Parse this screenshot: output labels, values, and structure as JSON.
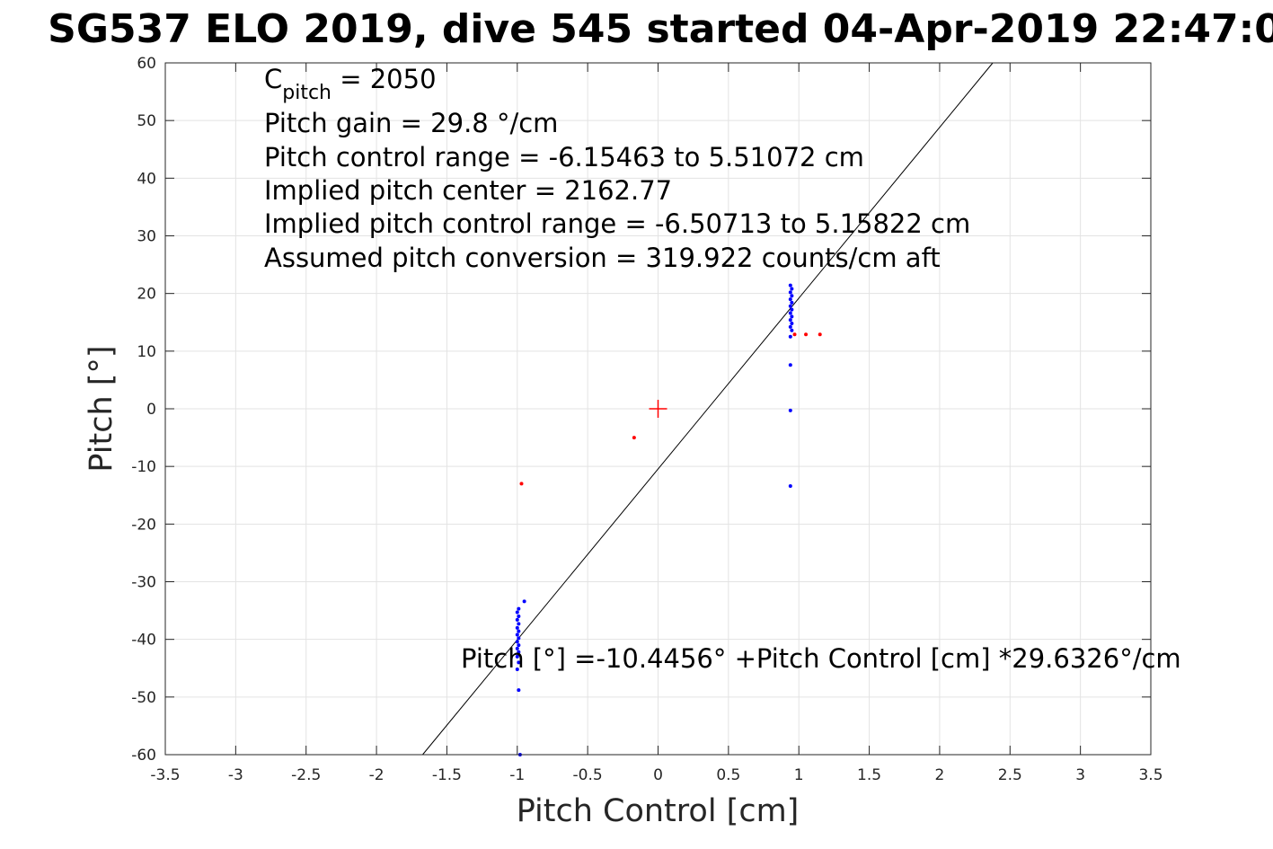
{
  "chart_data": {
    "type": "scatter",
    "title": "SG537 ELO 2019, dive 545 started 04-Apr-2019 22:47:0",
    "xlabel": "Pitch Control [cm]",
    "ylabel": "Pitch [°]",
    "xlim": [
      -3.5,
      3.5
    ],
    "ylim": [
      -60,
      60
    ],
    "x_ticks": [
      -3.5,
      -3,
      -2.5,
      -2,
      -1.5,
      -1,
      -0.5,
      0,
      0.5,
      1,
      1.5,
      2,
      2.5,
      3,
      3.5
    ],
    "x_tick_labels": [
      "-3.5",
      "-3",
      "-2.5",
      "-2",
      "-1.5",
      "-1",
      "-0.5",
      "0",
      "0.5",
      "1",
      "1.5",
      "2",
      "2.5",
      "3",
      "3.5"
    ],
    "y_ticks": [
      -60,
      -50,
      -40,
      -30,
      -20,
      -10,
      0,
      10,
      20,
      30,
      40,
      50,
      60
    ],
    "y_tick_labels": [
      "-60",
      "-50",
      "-40",
      "-30",
      "-20",
      "-10",
      "0",
      "10",
      "20",
      "30",
      "40",
      "50",
      "60"
    ],
    "grid": true,
    "annotations": {
      "c_pitch_main": "C",
      "c_pitch_sub": "pitch",
      "c_pitch_value": " = 2050",
      "lines": [
        "Pitch gain = 29.8 °/cm",
        "Pitch control range = -6.15463 to 5.51072 cm",
        "Implied pitch center = 2162.77",
        "Implied pitch control range = -6.50713 to 5.15822 cm",
        "Assumed pitch conversion = 319.922 counts/cm aft"
      ],
      "fit_equation": "Pitch [°] =-10.4456° +Pitch Control [cm] *29.6326°/cm"
    },
    "fit_line": {
      "intercept": -10.4456,
      "slope": 29.6326,
      "color": "#000000"
    },
    "center_marker": {
      "x": 0,
      "y": 0,
      "color": "#ff0000"
    },
    "series": [
      {
        "color": "#0000ff",
        "points": [
          [
            -0.98,
            -60
          ],
          [
            -0.99,
            -48.8
          ],
          [
            -1.0,
            -45.2
          ],
          [
            -0.99,
            -44.0
          ],
          [
            -1.0,
            -43.0
          ],
          [
            -0.99,
            -42.2
          ],
          [
            -1.0,
            -41.6
          ],
          [
            -0.99,
            -41.0
          ],
          [
            -1.0,
            -40.4
          ],
          [
            -0.99,
            -39.8
          ],
          [
            -1.0,
            -39.2
          ],
          [
            -0.99,
            -38.6
          ],
          [
            -1.0,
            -38.0
          ],
          [
            -0.99,
            -37.3
          ],
          [
            -1.0,
            -36.6
          ],
          [
            -0.99,
            -36.0
          ],
          [
            -1.0,
            -35.3
          ],
          [
            -0.99,
            -34.7
          ],
          [
            -0.95,
            -33.4
          ],
          [
            0.94,
            -13.4
          ],
          [
            0.94,
            -0.3
          ],
          [
            0.94,
            7.6
          ],
          [
            0.94,
            12.5
          ],
          [
            0.95,
            13.6
          ],
          [
            0.94,
            14.2
          ],
          [
            0.95,
            14.8
          ],
          [
            0.94,
            15.4
          ],
          [
            0.95,
            16.0
          ],
          [
            0.94,
            16.6
          ],
          [
            0.95,
            17.2
          ],
          [
            0.94,
            17.8
          ],
          [
            0.95,
            18.4
          ],
          [
            0.94,
            19.0
          ],
          [
            0.95,
            19.6
          ],
          [
            0.94,
            20.2
          ],
          [
            0.95,
            20.8
          ],
          [
            0.94,
            21.4
          ]
        ]
      },
      {
        "color": "#ff0000",
        "points": [
          [
            -0.97,
            -13.0
          ],
          [
            -0.17,
            -5.0
          ],
          [
            0.97,
            12.9
          ],
          [
            1.05,
            12.9
          ],
          [
            1.15,
            12.9
          ]
        ]
      }
    ]
  }
}
